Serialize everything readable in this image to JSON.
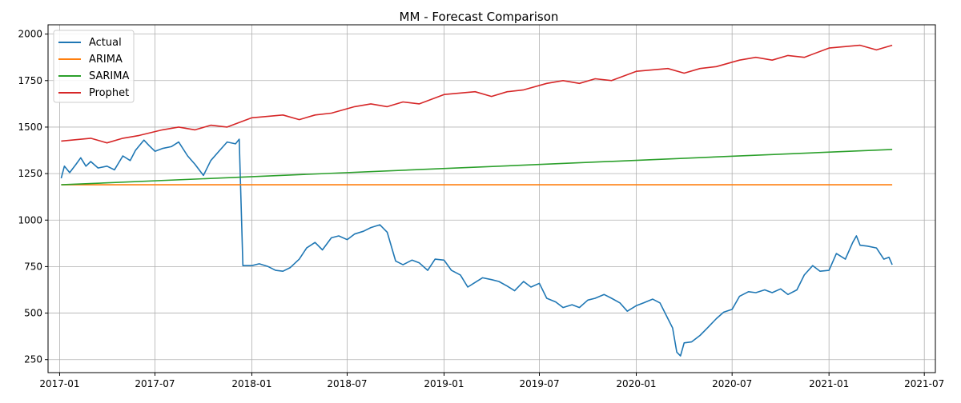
{
  "colors": {
    "actual": "#1f77b4",
    "arima": "#ff7f0e",
    "sarima": "#2ca02c",
    "prophet": "#d62728",
    "grid": "#b0b0b0",
    "axis": "#000000"
  },
  "chart_data": {
    "type": "line",
    "title": "MM - Forecast Comparison",
    "xlabel": "",
    "ylabel": "",
    "x_type": "date",
    "xlim": [
      "2016-12-10",
      "2021-07-22"
    ],
    "ylim": [
      180,
      2050
    ],
    "grid": true,
    "legend_position": "top-left",
    "x_ticks": [
      "2017-01-01",
      "2017-07-01",
      "2018-01-01",
      "2018-07-01",
      "2019-01-01",
      "2019-07-01",
      "2020-01-01",
      "2020-07-01",
      "2021-01-01",
      "2021-07-01"
    ],
    "x_tick_labels": [
      "2017-01",
      "2017-07",
      "2018-01",
      "2018-07",
      "2019-01",
      "2019-07",
      "2020-01",
      "2020-07",
      "2021-01",
      "2021-07"
    ],
    "y_ticks": [
      250,
      500,
      750,
      1000,
      1250,
      1500,
      1750,
      2000
    ],
    "y_tick_labels": [
      "250",
      "500",
      "750",
      "1000",
      "1250",
      "1500",
      "1750",
      "2000"
    ],
    "series": [
      {
        "name": "Actual",
        "color": "#1f77b4",
        "points": [
          [
            "2017-01-04",
            1225
          ],
          [
            "2017-01-10",
            1290
          ],
          [
            "2017-01-20",
            1255
          ],
          [
            "2017-02-01",
            1300
          ],
          [
            "2017-02-10",
            1335
          ],
          [
            "2017-02-20",
            1290
          ],
          [
            "2017-03-01",
            1315
          ],
          [
            "2017-03-15",
            1280
          ],
          [
            "2017-04-01",
            1290
          ],
          [
            "2017-04-15",
            1270
          ],
          [
            "2017-05-01",
            1345
          ],
          [
            "2017-05-15",
            1320
          ],
          [
            "2017-05-25",
            1375
          ],
          [
            "2017-06-10",
            1430
          ],
          [
            "2017-06-20",
            1400
          ],
          [
            "2017-07-01",
            1370
          ],
          [
            "2017-07-15",
            1385
          ],
          [
            "2017-08-01",
            1395
          ],
          [
            "2017-08-15",
            1420
          ],
          [
            "2017-09-01",
            1345
          ],
          [
            "2017-09-15",
            1300
          ],
          [
            "2017-10-01",
            1240
          ],
          [
            "2017-10-15",
            1320
          ],
          [
            "2017-11-01",
            1375
          ],
          [
            "2017-11-15",
            1420
          ],
          [
            "2017-12-01",
            1410
          ],
          [
            "2017-12-08",
            1435
          ],
          [
            "2017-12-15",
            755
          ],
          [
            "2018-01-01",
            755
          ],
          [
            "2018-01-15",
            765
          ],
          [
            "2018-02-01",
            750
          ],
          [
            "2018-02-15",
            730
          ],
          [
            "2018-03-01",
            725
          ],
          [
            "2018-03-15",
            745
          ],
          [
            "2018-04-01",
            790
          ],
          [
            "2018-04-15",
            850
          ],
          [
            "2018-05-01",
            880
          ],
          [
            "2018-05-15",
            840
          ],
          [
            "2018-06-01",
            905
          ],
          [
            "2018-06-15",
            915
          ],
          [
            "2018-07-01",
            895
          ],
          [
            "2018-07-15",
            925
          ],
          [
            "2018-08-01",
            940
          ],
          [
            "2018-08-15",
            960
          ],
          [
            "2018-09-01",
            975
          ],
          [
            "2018-09-15",
            935
          ],
          [
            "2018-10-01",
            780
          ],
          [
            "2018-10-15",
            760
          ],
          [
            "2018-11-01",
            785
          ],
          [
            "2018-11-15",
            770
          ],
          [
            "2018-12-01",
            730
          ],
          [
            "2018-12-15",
            790
          ],
          [
            "2019-01-01",
            785
          ],
          [
            "2019-01-15",
            730
          ],
          [
            "2019-02-01",
            705
          ],
          [
            "2019-02-15",
            640
          ],
          [
            "2019-03-01",
            665
          ],
          [
            "2019-03-15",
            690
          ],
          [
            "2019-04-01",
            680
          ],
          [
            "2019-04-15",
            670
          ],
          [
            "2019-05-01",
            645
          ],
          [
            "2019-05-15",
            620
          ],
          [
            "2019-06-01",
            670
          ],
          [
            "2019-06-15",
            640
          ],
          [
            "2019-07-01",
            660
          ],
          [
            "2019-07-15",
            580
          ],
          [
            "2019-08-01",
            560
          ],
          [
            "2019-08-15",
            530
          ],
          [
            "2019-09-01",
            545
          ],
          [
            "2019-09-15",
            530
          ],
          [
            "2019-10-01",
            570
          ],
          [
            "2019-10-15",
            580
          ],
          [
            "2019-11-01",
            600
          ],
          [
            "2019-11-15",
            580
          ],
          [
            "2019-12-01",
            555
          ],
          [
            "2019-12-15",
            510
          ],
          [
            "2020-01-01",
            540
          ],
          [
            "2020-01-15",
            555
          ],
          [
            "2020-02-01",
            575
          ],
          [
            "2020-02-15",
            555
          ],
          [
            "2020-03-01",
            470
          ],
          [
            "2020-03-10",
            420
          ],
          [
            "2020-03-18",
            290
          ],
          [
            "2020-03-25",
            270
          ],
          [
            "2020-04-01",
            340
          ],
          [
            "2020-04-15",
            345
          ],
          [
            "2020-05-01",
            380
          ],
          [
            "2020-05-15",
            420
          ],
          [
            "2020-06-01",
            470
          ],
          [
            "2020-06-15",
            505
          ],
          [
            "2020-07-01",
            520
          ],
          [
            "2020-07-15",
            590
          ],
          [
            "2020-08-01",
            615
          ],
          [
            "2020-08-15",
            610
          ],
          [
            "2020-09-01",
            625
          ],
          [
            "2020-09-15",
            610
          ],
          [
            "2020-10-01",
            630
          ],
          [
            "2020-10-15",
            600
          ],
          [
            "2020-11-01",
            625
          ],
          [
            "2020-11-15",
            705
          ],
          [
            "2020-12-01",
            755
          ],
          [
            "2020-12-15",
            725
          ],
          [
            "2021-01-01",
            730
          ],
          [
            "2021-01-15",
            820
          ],
          [
            "2021-02-01",
            790
          ],
          [
            "2021-02-15",
            880
          ],
          [
            "2021-02-22",
            915
          ],
          [
            "2021-03-01",
            865
          ],
          [
            "2021-03-15",
            860
          ],
          [
            "2021-04-01",
            850
          ],
          [
            "2021-04-15",
            790
          ],
          [
            "2021-04-25",
            800
          ],
          [
            "2021-05-01",
            760
          ]
        ]
      },
      {
        "name": "ARIMA",
        "color": "#ff7f0e",
        "points": [
          [
            "2017-01-04",
            1190
          ],
          [
            "2021-05-01",
            1190
          ]
        ]
      },
      {
        "name": "SARIMA",
        "color": "#2ca02c",
        "points": [
          [
            "2017-01-04",
            1190
          ],
          [
            "2021-05-01",
            1380
          ]
        ]
      },
      {
        "name": "Prophet",
        "color": "#d62728",
        "points": [
          [
            "2017-01-04",
            1425
          ],
          [
            "2017-03-01",
            1440
          ],
          [
            "2017-04-01",
            1415
          ],
          [
            "2017-05-01",
            1440
          ],
          [
            "2017-06-01",
            1455
          ],
          [
            "2017-07-15",
            1485
          ],
          [
            "2017-08-15",
            1500
          ],
          [
            "2017-09-15",
            1485
          ],
          [
            "2017-10-15",
            1510
          ],
          [
            "2017-11-15",
            1500
          ],
          [
            "2018-01-01",
            1550
          ],
          [
            "2018-03-01",
            1565
          ],
          [
            "2018-04-01",
            1540
          ],
          [
            "2018-05-01",
            1565
          ],
          [
            "2018-06-01",
            1575
          ],
          [
            "2018-07-15",
            1610
          ],
          [
            "2018-08-15",
            1625
          ],
          [
            "2018-09-15",
            1610
          ],
          [
            "2018-10-15",
            1635
          ],
          [
            "2018-11-15",
            1625
          ],
          [
            "2019-01-01",
            1675
          ],
          [
            "2019-03-01",
            1690
          ],
          [
            "2019-04-01",
            1665
          ],
          [
            "2019-05-01",
            1690
          ],
          [
            "2019-06-01",
            1700
          ],
          [
            "2019-07-15",
            1735
          ],
          [
            "2019-08-15",
            1750
          ],
          [
            "2019-09-15",
            1735
          ],
          [
            "2019-10-15",
            1760
          ],
          [
            "2019-11-15",
            1750
          ],
          [
            "2020-01-01",
            1800
          ],
          [
            "2020-03-01",
            1815
          ],
          [
            "2020-04-01",
            1790
          ],
          [
            "2020-05-01",
            1815
          ],
          [
            "2020-06-01",
            1825
          ],
          [
            "2020-07-15",
            1860
          ],
          [
            "2020-08-15",
            1875
          ],
          [
            "2020-09-15",
            1860
          ],
          [
            "2020-10-15",
            1885
          ],
          [
            "2020-11-15",
            1875
          ],
          [
            "2021-01-01",
            1925
          ],
          [
            "2021-03-01",
            1940
          ],
          [
            "2021-04-01",
            1915
          ],
          [
            "2021-05-01",
            1940
          ]
        ]
      }
    ]
  }
}
